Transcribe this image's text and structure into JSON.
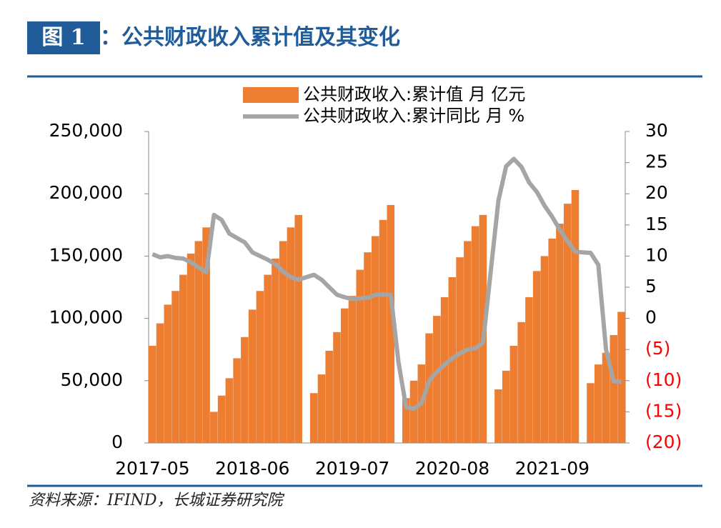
{
  "header": {
    "label": "图 1",
    "title": "：公共财政收入累计值及其变化"
  },
  "source": "资料来源：IFIND，长城证券研究院",
  "chart_data": {
    "type": "bar",
    "categories": [
      "2017-05",
      null,
      null,
      null,
      null,
      null,
      null,
      null,
      null,
      null,
      null,
      null,
      null,
      "2018-06",
      null,
      null,
      null,
      null,
      null,
      null,
      null,
      null,
      null,
      null,
      null,
      null,
      "2019-07",
      null,
      null,
      null,
      null,
      null,
      null,
      null,
      null,
      null,
      null,
      null,
      null,
      "2020-08",
      null,
      null,
      null,
      null,
      null,
      null,
      null,
      null,
      null,
      null,
      null,
      null,
      "2021-09",
      null,
      null,
      null,
      null,
      null,
      null,
      null,
      null,
      null
    ],
    "series": [
      {
        "name": "公共财政收入:累计值 月 亿元",
        "type": "bar",
        "color": "#ED7D31",
        "values": [
          78000,
          96000,
          111000,
          122000,
          135000,
          152000,
          162000,
          173000,
          25000,
          38000,
          52000,
          68000,
          85000,
          107000,
          122000,
          135000,
          148000,
          162000,
          173000,
          183000,
          null,
          40000,
          55000,
          74000,
          89000,
          108000,
          118000,
          139000,
          153000,
          166000,
          179000,
          191000,
          null,
          36000,
          50000,
          63000,
          88000,
          102000,
          117000,
          133000,
          149000,
          162000,
          174000,
          183000,
          null,
          43000,
          58000,
          78000,
          97000,
          117000,
          138000,
          150000,
          164000,
          176000,
          192000,
          203000,
          null,
          48000,
          63000,
          72400,
          86600,
          105200
        ]
      },
      {
        "name": "公共财政收入:累计同比 月 %",
        "type": "line",
        "axis": "y2",
        "color": "#A5A5A5",
        "values": [
          10.3,
          9.8,
          10.0,
          9.7,
          9.6,
          9.0,
          8.2,
          7.4,
          16.6,
          15.8,
          13.6,
          12.9,
          12.2,
          10.6,
          10.0,
          9.4,
          8.7,
          7.5,
          6.6,
          6.2,
          6.6,
          7.0,
          6.2,
          5.0,
          3.8,
          3.4,
          3.1,
          3.2,
          3.3,
          3.8,
          3.8,
          3.8,
          -7.0,
          -14.3,
          -14.5,
          -13.6,
          -10.0,
          -8.6,
          -7.4,
          -6.4,
          -5.6,
          -5.0,
          -4.8,
          -3.9,
          7.5,
          18.9,
          24.4,
          25.6,
          24.3,
          21.8,
          20.3,
          18.1,
          16.3,
          14.2,
          12.4,
          10.7,
          10.6,
          10.5,
          8.6,
          -5.0,
          -10.1,
          -10.2
        ]
      }
    ],
    "ylim": [
      0,
      250000
    ],
    "yticks": [
      0,
      {
        "value": 50000,
        "label": "50,000"
      },
      {
        "value": 100000,
        "label": "100,000"
      },
      {
        "value": 150000,
        "label": "150,000"
      },
      {
        "value": 200000,
        "label": "200,000"
      },
      {
        "value": 250000,
        "label": "250,000"
      }
    ],
    "y2lim": [
      -20,
      30
    ],
    "y2ticks": [
      {
        "value": -20,
        "label": "(20)"
      },
      {
        "value": -15,
        "label": "(15)"
      },
      {
        "value": -10,
        "label": "(10)"
      },
      {
        "value": -5,
        "label": "(5)"
      },
      0,
      5,
      10,
      15,
      20,
      25,
      30
    ],
    "negative_tick_color": "#FF0000"
  }
}
